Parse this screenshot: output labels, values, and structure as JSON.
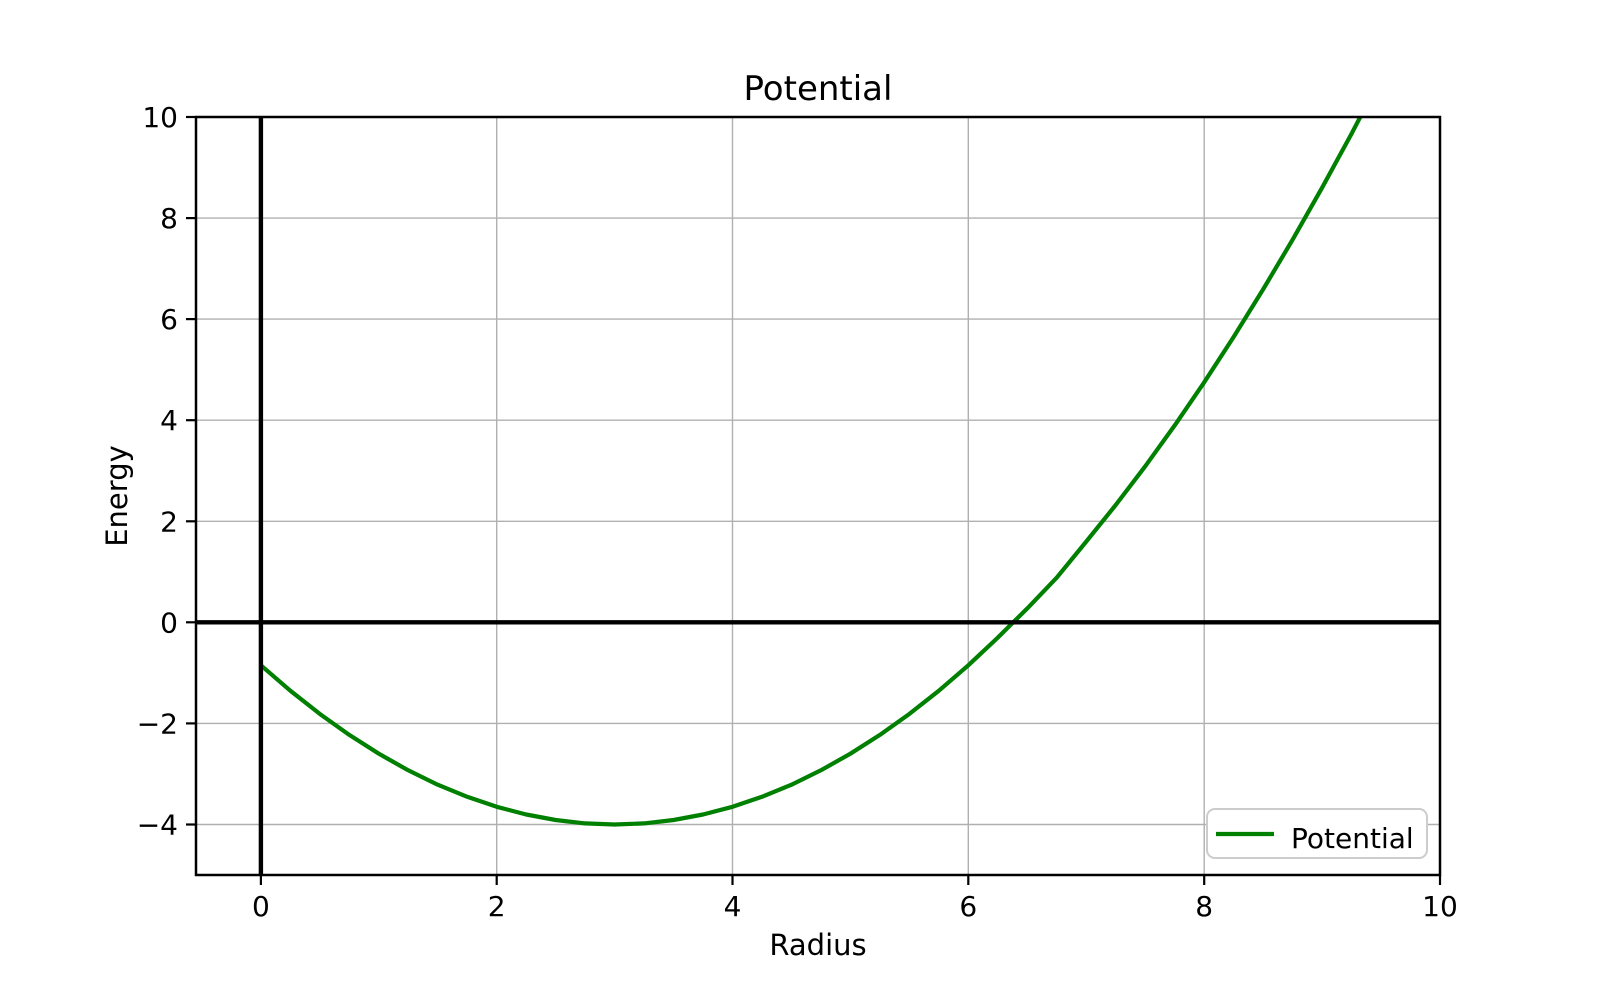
{
  "colors": {
    "curve": "#008000",
    "grid": "#b0b0b0",
    "axis": "#000000",
    "legend_border": "#cccccc",
    "background": "#ffffff"
  },
  "chart_data": {
    "type": "line",
    "title": "Potential",
    "xlabel": "Radius",
    "ylabel": "Energy",
    "xlim": [
      -0.55,
      10
    ],
    "ylim": [
      -5,
      10
    ],
    "xticks": [
      0,
      2,
      4,
      6,
      8,
      10
    ],
    "xtick_labels": [
      "0",
      "2",
      "4",
      "6",
      "8",
      "10"
    ],
    "yticks": [
      -4,
      -2,
      0,
      2,
      4,
      6,
      8,
      10
    ],
    "ytick_labels": [
      "−4",
      "−2",
      "0",
      "2",
      "4",
      "6",
      "8",
      "10"
    ],
    "grid": true,
    "reference_lines": {
      "horizontal_y": 0,
      "vertical_x": 0
    },
    "legend": {
      "position": "lower right",
      "entries": [
        "Potential"
      ]
    },
    "series": [
      {
        "name": "Potential",
        "color": "#008000",
        "points": [
          [
            0.0,
            -0.85
          ],
          [
            0.25,
            -1.3531
          ],
          [
            0.5,
            -1.8125
          ],
          [
            0.75,
            -2.2281
          ],
          [
            1.0,
            -2.6
          ],
          [
            1.25,
            -2.9281
          ],
          [
            1.5,
            -3.2125
          ],
          [
            1.75,
            -3.4531
          ],
          [
            2.0,
            -3.65
          ],
          [
            2.25,
            -3.8031
          ],
          [
            2.5,
            -3.9125
          ],
          [
            2.75,
            -3.9781
          ],
          [
            3.0,
            -4.0
          ],
          [
            3.25,
            -3.9781
          ],
          [
            3.5,
            -3.9125
          ],
          [
            3.75,
            -3.8031
          ],
          [
            4.0,
            -3.65
          ],
          [
            4.25,
            -3.4531
          ],
          [
            4.5,
            -3.2125
          ],
          [
            4.75,
            -2.9281
          ],
          [
            5.0,
            -2.6
          ],
          [
            5.25,
            -2.2281
          ],
          [
            5.5,
            -1.8125
          ],
          [
            5.75,
            -1.3531
          ],
          [
            6.0,
            -0.85
          ],
          [
            6.25,
            -0.3031
          ],
          [
            6.5,
            0.275
          ],
          [
            6.75,
            0.8844
          ],
          [
            7.0,
            1.6
          ],
          [
            7.25,
            2.3219
          ],
          [
            7.5,
            3.0875
          ],
          [
            7.75,
            3.8969
          ],
          [
            8.0,
            4.75
          ],
          [
            8.25,
            5.6469
          ],
          [
            8.5,
            6.5875
          ],
          [
            8.75,
            7.5719
          ],
          [
            9.0,
            8.6
          ],
          [
            9.25,
            9.6719
          ],
          [
            9.5,
            10.7875
          ]
        ]
      }
    ]
  }
}
